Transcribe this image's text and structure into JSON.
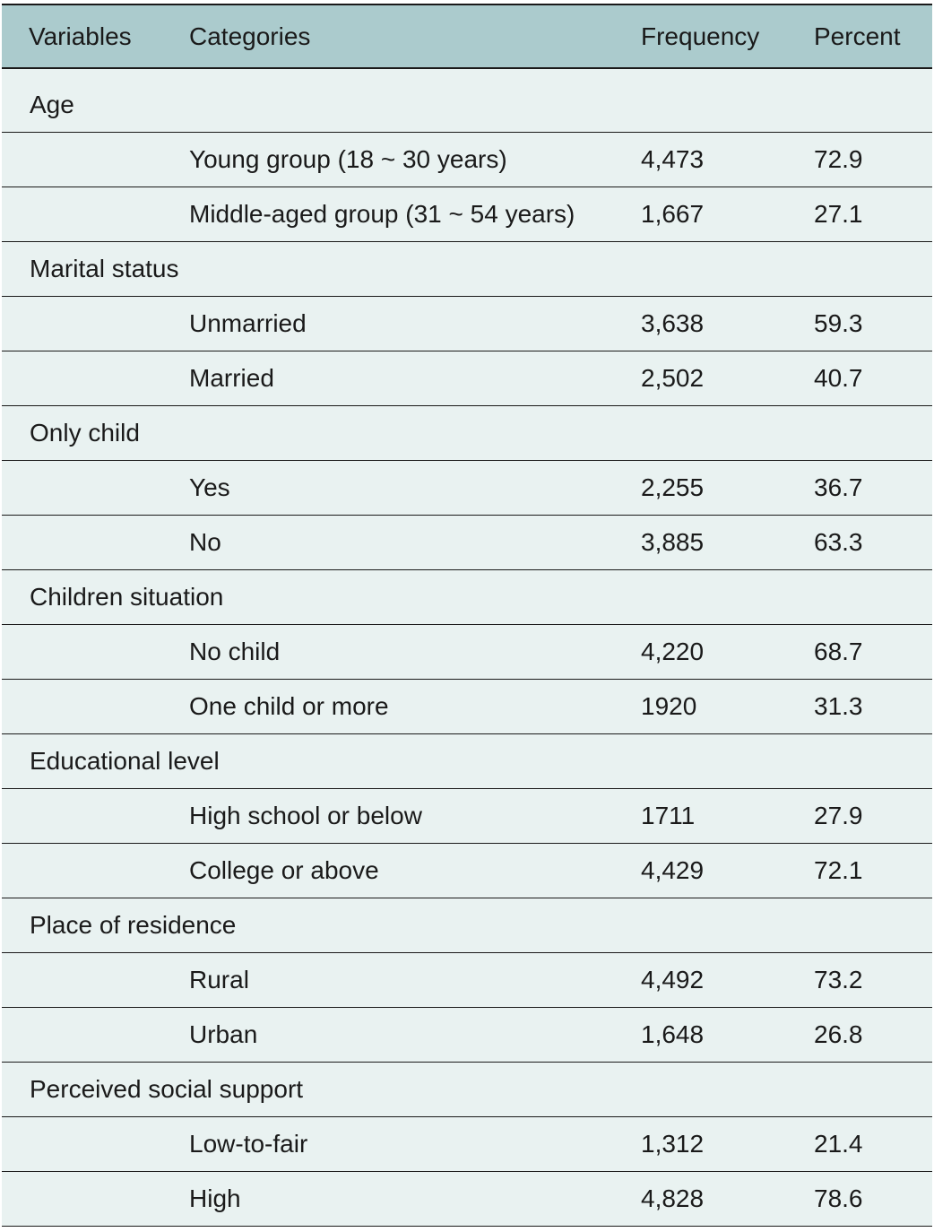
{
  "table": {
    "headers": [
      "Variables",
      "Categories",
      "Frequency",
      "Percent"
    ],
    "groups": [
      {
        "variable": "Age",
        "rows": [
          {
            "category": "Young group (18 ~ 30 years)",
            "frequency": "4,473",
            "percent": "72.9"
          },
          {
            "category": "Middle-aged group (31 ~ 54 years)",
            "frequency": "1,667",
            "percent": "27.1"
          }
        ]
      },
      {
        "variable": "Marital status",
        "rows": [
          {
            "category": "Unmarried",
            "frequency": "3,638",
            "percent": "59.3"
          },
          {
            "category": "Married",
            "frequency": "2,502",
            "percent": "40.7"
          }
        ]
      },
      {
        "variable": "Only child",
        "rows": [
          {
            "category": "Yes",
            "frequency": "2,255",
            "percent": "36.7"
          },
          {
            "category": "No",
            "frequency": "3,885",
            "percent": "63.3"
          }
        ]
      },
      {
        "variable": "Children situation",
        "rows": [
          {
            "category": "No child",
            "frequency": "4,220",
            "percent": "68.7"
          },
          {
            "category": "One child or more",
            "frequency": "1920",
            "percent": "31.3"
          }
        ]
      },
      {
        "variable": "Educational level",
        "rows": [
          {
            "category": "High school or below",
            "frequency": "1711",
            "percent": "27.9"
          },
          {
            "category": "College or above",
            "frequency": "4,429",
            "percent": "72.1"
          }
        ]
      },
      {
        "variable": "Place of residence",
        "rows": [
          {
            "category": "Rural",
            "frequency": "4,492",
            "percent": "73.2"
          },
          {
            "category": "Urban",
            "frequency": "1,648",
            "percent": "26.8"
          }
        ]
      },
      {
        "variable": "Perceived social support",
        "rows": [
          {
            "category": "Low-to-fair",
            "frequency": "1,312",
            "percent": "21.4"
          },
          {
            "category": "High",
            "frequency": "4,828",
            "percent": "78.6"
          }
        ]
      }
    ]
  },
  "colors": {
    "header_background": "#abcbcd",
    "body_background": "#e9f2f1",
    "rule": "#1a1a1a"
  }
}
